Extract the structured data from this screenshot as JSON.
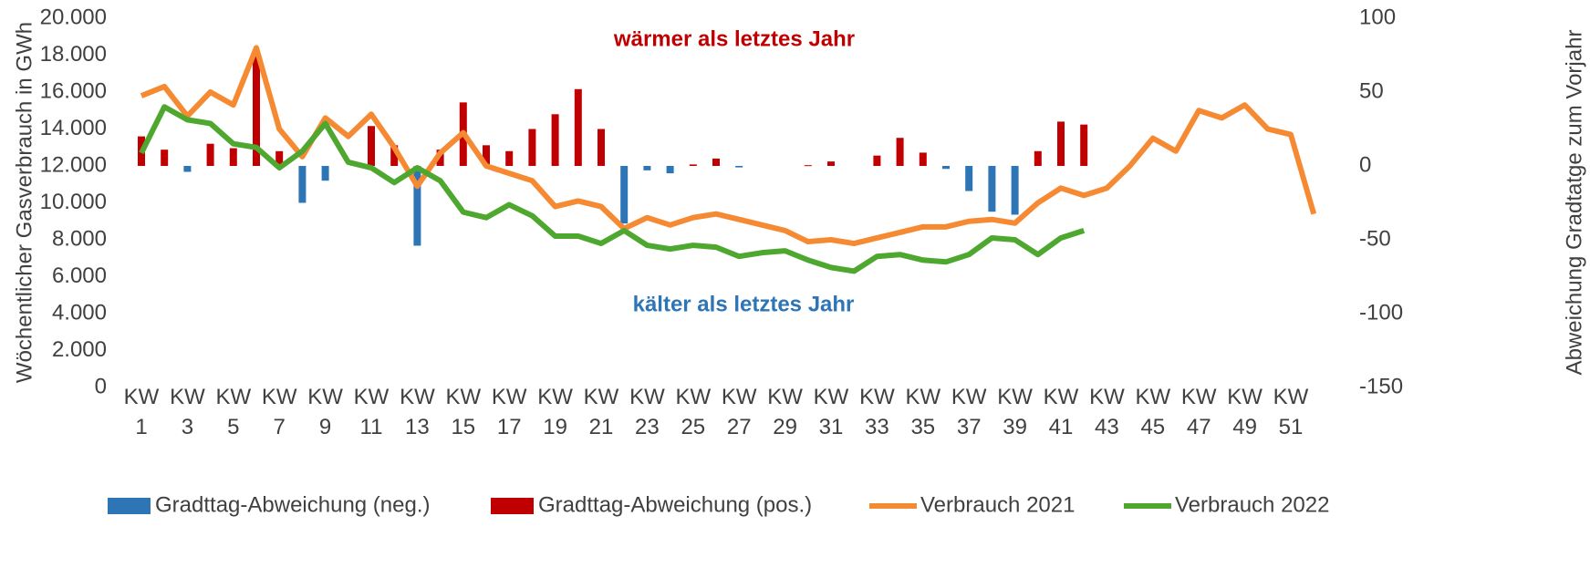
{
  "chart_data": {
    "type": "bar",
    "annotations": [
      {
        "text": "wärmer als letztes Jahr",
        "color": "#c00000"
      },
      {
        "text": "kälter als letztes Jahr",
        "color": "#2e75b6"
      }
    ],
    "y_label": "Wöchentlicher Gasverbrauch in GWh",
    "y2_label": "Abweichung Gradtatge zum Vorjahr",
    "categories": [
      "KW 1",
      null,
      "KW 3",
      null,
      "KW 5",
      null,
      "KW 7",
      null,
      "KW 9",
      null,
      "KW 11",
      null,
      "KW 13",
      null,
      "KW 15",
      null,
      "KW 17",
      null,
      "KW 19",
      null,
      "KW 21",
      null,
      "KW 23",
      null,
      "KW 25",
      null,
      "KW 27",
      null,
      "KW 29",
      null,
      "KW 31",
      null,
      "KW 33",
      null,
      "KW 35",
      null,
      "KW 37",
      null,
      "KW 39",
      null,
      "KW 41",
      null,
      "KW 43",
      null,
      "KW 45",
      null,
      "KW 47",
      null,
      "KW 49",
      null,
      "KW 51",
      null
    ],
    "ylim": [
      0,
      20000
    ],
    "yticks": [
      0,
      {
        "value": 2000,
        "label": "2.000"
      },
      {
        "value": 4000,
        "label": "4.000"
      },
      {
        "value": 6000,
        "label": "6.000"
      },
      {
        "value": 8000,
        "label": "8.000"
      },
      {
        "value": 10000,
        "label": "10.000"
      },
      {
        "value": 12000,
        "label": "12.000"
      },
      {
        "value": 14000,
        "label": "14.000"
      },
      {
        "value": 16000,
        "label": "16.000"
      },
      {
        "value": 18000,
        "label": "18.000"
      },
      {
        "value": 20000,
        "label": "20.000"
      }
    ],
    "y2lim": [
      -150,
      100
    ],
    "y2ticks": [
      -150,
      -100,
      -50,
      0,
      50,
      100
    ],
    "grid": false,
    "legend": "bottom",
    "series": [
      {
        "name": "Gradttag-Abweichung (neg.)",
        "type": "bar",
        "axis": "y2",
        "color": "#2e75b6",
        "values": [
          null,
          null,
          -4,
          null,
          null,
          null,
          null,
          -25,
          -10,
          null,
          null,
          null,
          -54,
          null,
          null,
          null,
          null,
          null,
          null,
          null,
          null,
          -39,
          -3,
          -5,
          null,
          null,
          -1,
          null,
          null,
          null,
          null,
          null,
          null,
          null,
          null,
          -2,
          -17,
          -31,
          -33,
          null,
          null,
          null,
          null,
          null,
          null,
          null,
          null,
          null,
          null,
          null,
          null,
          null
        ]
      },
      {
        "name": "Gradttag-Abweichung (pos.)",
        "type": "bar",
        "axis": "y2",
        "color": "#c00000",
        "values": [
          20,
          11,
          null,
          15,
          12,
          75,
          10,
          null,
          null,
          null,
          27,
          14,
          null,
          11,
          43,
          14,
          10,
          25,
          35,
          52,
          25,
          null,
          null,
          null,
          1,
          5,
          null,
          null,
          null,
          0.5,
          3,
          null,
          7,
          19,
          9,
          null,
          null,
          null,
          null,
          10,
          30,
          28,
          null,
          null,
          null,
          null,
          null,
          null,
          null,
          null,
          null,
          null
        ]
      },
      {
        "name": "Verbrauch 2021",
        "type": "line",
        "color": "#f58a33",
        "values": [
          15800,
          16300,
          14700,
          16000,
          15300,
          18400,
          14000,
          12500,
          14600,
          13600,
          14800,
          13000,
          10900,
          12700,
          13800,
          12000,
          11600,
          11200,
          9800,
          10100,
          9800,
          8600,
          9200,
          8800,
          9200,
          9400,
          9100,
          8800,
          8500,
          7900,
          8000,
          7800,
          8100,
          8400,
          8700,
          8700,
          9000,
          9100,
          8900,
          10000,
          10800,
          10400,
          10800,
          12000,
          13500,
          12800,
          15000,
          14600,
          15300,
          14000,
          13700,
          9400
        ]
      },
      {
        "name": "Verbrauch 2022",
        "type": "line",
        "color": "#4ea72e",
        "values": [
          12700,
          15200,
          14500,
          14300,
          13200,
          13000,
          11900,
          12800,
          14300,
          12200,
          11900,
          11100,
          11900,
          11200,
          9500,
          9200,
          9900,
          9300,
          8200,
          8200,
          7800,
          8500,
          7700,
          7500,
          7700,
          7600,
          7100,
          7300,
          7400,
          6900,
          6500,
          6300,
          7100,
          7200,
          6900,
          6800,
          7200,
          8100,
          8000,
          7200,
          8100,
          8500,
          null,
          null,
          null,
          null,
          null,
          null,
          null,
          null,
          null,
          null
        ]
      }
    ]
  }
}
